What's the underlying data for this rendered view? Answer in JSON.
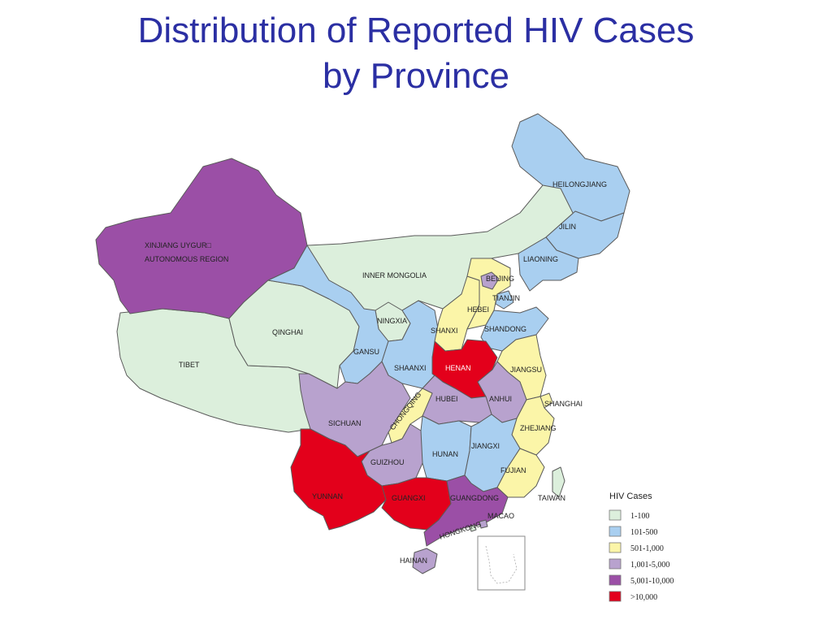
{
  "title": {
    "line1": "Distribution of Reported HIV Cases",
    "line2": "by Province"
  },
  "legend": {
    "title": "HIV Cases",
    "items": [
      {
        "label": "1-100",
        "color": "#dcefdc"
      },
      {
        "label": "101-500",
        "color": "#a9cff0"
      },
      {
        "label": "501-1,000",
        "color": "#fbf5a8"
      },
      {
        "label": "1,001-5,000",
        "color": "#b8a2ce"
      },
      {
        "label": "5,001-10,000",
        "color": "#9b4fa6"
      },
      {
        "label": ">10,000",
        "color": "#e3001b"
      }
    ]
  },
  "provinces": {
    "xinjiang": {
      "label1": "XINJIANG UYGUR□",
      "label2": "AUTONOMOUS REGION",
      "category": "5,001-10,000"
    },
    "tibet": {
      "label": "TIBET",
      "category": "1-100"
    },
    "qinghai": {
      "label": "QINGHAI",
      "category": "1-100"
    },
    "inner_mongolia": {
      "label": "INNER MONGOLIA",
      "category": "1-100"
    },
    "heilongjiang": {
      "label": "HEILONGJIANG",
      "category": "101-500"
    },
    "jilin": {
      "label": "JILIN",
      "category": "101-500"
    },
    "liaoning": {
      "label": "LIAONING",
      "category": "101-500"
    },
    "beijing": {
      "label": "BEIJING",
      "category": "1,001-5,000"
    },
    "tianjin": {
      "label": "TIANJIN",
      "category": "101-500"
    },
    "hebei": {
      "label": "HEBEI",
      "category": "501-1,000"
    },
    "shanxi": {
      "label": "SHANXI",
      "category": "501-1,000"
    },
    "shandong": {
      "label": "SHANDONG",
      "category": "101-500"
    },
    "ningxia": {
      "label": "NINGXIA",
      "category": "1-100"
    },
    "gansu": {
      "label": "GANSU",
      "category": "101-500"
    },
    "shaanxi": {
      "label": "SHAANXI",
      "category": "101-500"
    },
    "henan": {
      "label": "HENAN",
      "category": ">10,000"
    },
    "jiangsu": {
      "label": "JIANGSU",
      "category": "501-1,000"
    },
    "shanghai": {
      "label": "SHANGHAI",
      "category": "501-1,000"
    },
    "anhui": {
      "label": "ANHUI",
      "category": "1,001-5,000"
    },
    "hubei": {
      "label": "HUBEI",
      "category": "1,001-5,000"
    },
    "chongqing": {
      "label": "CHONGQING",
      "category": "501-1,000"
    },
    "sichuan": {
      "label": "SICHUAN",
      "category": "1,001-5,000"
    },
    "zhejiang": {
      "label": "ZHEJIANG",
      "category": "501-1,000"
    },
    "hunan": {
      "label": "HUNAN",
      "category": "101-500"
    },
    "jiangxi": {
      "label": "JIANGXI",
      "category": "101-500"
    },
    "guizhou": {
      "label": "GUIZHOU",
      "category": "1,001-5,000"
    },
    "fujian": {
      "label": "FUJIAN",
      "category": "501-1,000"
    },
    "yunnan": {
      "label": "YUNNAN",
      "category": ">10,000"
    },
    "guangxi": {
      "label": "GUANGXI",
      "category": ">10,000"
    },
    "guangdong": {
      "label": "GUANGDONG",
      "category": "5,001-10,000"
    },
    "taiwan": {
      "label": "TAIWAN",
      "category": "1-100"
    },
    "macao": {
      "label": "MACAO",
      "category": "1-100"
    },
    "hongkong": {
      "label": "HONGKONG",
      "category": "1,001-5,000"
    },
    "hainan": {
      "label": "HAINAN",
      "category": "1,001-5,000"
    }
  }
}
